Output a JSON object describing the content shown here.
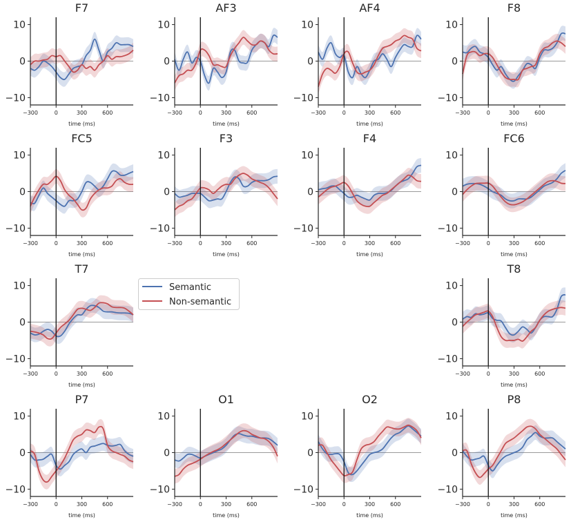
{
  "chart_data": {
    "type": "line",
    "layout": "4x4 grid of channel panels",
    "xlabel": "time (ms)",
    "xlim": [
      -300,
      900
    ],
    "ylim": [
      -12,
      12
    ],
    "xticks": [
      -300,
      0,
      300,
      600
    ],
    "xtick_labels": [
      "−300",
      "0",
      "300",
      "600"
    ],
    "yticks": [
      10,
      0,
      -10
    ],
    "ytick_labels": [
      "10",
      "0",
      "−10"
    ],
    "grid": false,
    "reference_lines": {
      "x": 0,
      "y": 0
    },
    "legend": {
      "placement": "row-3 column-2 slot",
      "entries": [
        "Semantic",
        "Non-semantic"
      ]
    },
    "colors": {
      "Semantic": "#4c72b0",
      "Non-semantic": "#c44e52"
    },
    "ci_halfwidth": 2,
    "x": [
      -300,
      -250,
      -200,
      -150,
      -100,
      -50,
      0,
      50,
      100,
      150,
      200,
      250,
      300,
      350,
      400,
      450,
      500,
      550,
      600,
      650,
      700,
      750,
      800,
      850,
      900
    ],
    "panels": [
      {
        "title": "F7",
        "row": 0,
        "col": 0,
        "series": [
          {
            "name": "Semantic",
            "values": [
              -2,
              -2.5,
              -1.5,
              0,
              -0.5,
              -1.5,
              -3,
              -4.5,
              -5,
              -3.5,
              -2,
              -1.5,
              -1,
              1.5,
              3,
              6,
              3,
              0,
              2.5,
              3.5,
              5,
              4.5,
              4.5,
              4.5,
              4
            ]
          },
          {
            "name": "Non-semantic",
            "values": [
              -1,
              0,
              0,
              0.3,
              0.5,
              1.5,
              1.2,
              1.5,
              0,
              -1.5,
              -3,
              -2.5,
              -1,
              -2,
              -1.5,
              -2.5,
              -1,
              0,
              1.5,
              0.5,
              1.2,
              1.2,
              1.5,
              2,
              3
            ]
          }
        ]
      },
      {
        "title": "AF3",
        "row": 0,
        "col": 1,
        "series": [
          {
            "name": "Semantic",
            "values": [
              0.5,
              -2.5,
              0.5,
              2.5,
              -0.5,
              1,
              0,
              -4,
              -6,
              -2,
              -3,
              -4.5,
              -3,
              2.5,
              3,
              0,
              -0.5,
              -0.3,
              3,
              4.5,
              5.5,
              5,
              4,
              7,
              6.5
            ]
          },
          {
            "name": "Non-semantic",
            "values": [
              -6,
              -4,
              -3.5,
              -2.5,
              -2.5,
              -0.5,
              3,
              3,
              1.5,
              -1,
              -1,
              -1.5,
              -1.5,
              1.5,
              3.5,
              5,
              6.5,
              5.5,
              4.5,
              4.5,
              5.5,
              5,
              3,
              2,
              2
            ]
          }
        ]
      },
      {
        "title": "AF4",
        "row": 0,
        "col": 2,
        "series": [
          {
            "name": "Semantic",
            "values": [
              2.5,
              0.5,
              3.5,
              5,
              2,
              1,
              1.5,
              -3,
              -4.5,
              -1.5,
              -3.5,
              -4.5,
              -2.5,
              0,
              0.5,
              2,
              0.5,
              -1.5,
              1,
              3,
              4.5,
              4,
              4,
              7,
              6
            ]
          },
          {
            "name": "Non-semantic",
            "values": [
              -7,
              -3.5,
              -2,
              -2.5,
              -3.3,
              -1.5,
              2,
              2.5,
              -0.5,
              -3,
              -3.5,
              -3,
              -2.5,
              -1,
              1.5,
              3.5,
              4,
              4.5,
              5.5,
              6,
              7,
              6.5,
              6,
              3.5,
              2.8
            ]
          }
        ]
      },
      {
        "title": "F8",
        "row": 0,
        "col": 3,
        "series": [
          {
            "name": "Semantic",
            "values": [
              2.5,
              2.3,
              3.5,
              4,
              2.5,
              2,
              1,
              -1,
              -2.5,
              -1.5,
              -3.5,
              -5,
              -5.5,
              -4,
              -2.5,
              -0.7,
              -1,
              -2,
              1,
              3,
              3,
              3.5,
              5,
              7.5,
              7.5
            ]
          },
          {
            "name": "Non-semantic",
            "values": [
              -3.5,
              1.5,
              2.5,
              2.5,
              1.5,
              2,
              2,
              1,
              -1,
              -3,
              -4.5,
              -5,
              -5,
              -5,
              -2.5,
              -2,
              -1.5,
              -1,
              2,
              3.5,
              4,
              5,
              5.5,
              5,
              4
            ]
          }
        ]
      },
      {
        "title": "FC5",
        "row": 1,
        "col": 0,
        "series": [
          {
            "name": "Semantic",
            "values": [
              -3,
              -3.2,
              -1,
              1,
              -0.5,
              -1.5,
              -2.5,
              -3.5,
              -4,
              -2.5,
              -2.5,
              -2,
              0,
              2.5,
              2.5,
              1.5,
              0.5,
              1.5,
              3.5,
              5.5,
              5.5,
              4.5,
              4.5,
              5,
              5.5
            ]
          },
          {
            "name": "Non-semantic",
            "values": [
              -4,
              -1.5,
              0.5,
              2,
              2,
              3,
              4.2,
              3,
              0.5,
              -1,
              -2,
              -3.5,
              -5,
              -4.5,
              -2,
              -0.5,
              0.5,
              1,
              1,
              1.5,
              3,
              3.5,
              2.5,
              2,
              2
            ]
          }
        ]
      },
      {
        "title": "F3",
        "row": 1,
        "col": 1,
        "series": [
          {
            "name": "Semantic",
            "values": [
              -0.5,
              -1.5,
              -1.3,
              -1,
              -0.5,
              -0.5,
              -0.5,
              -1.5,
              -2.5,
              -2.3,
              -2,
              -2,
              0,
              2.5,
              4,
              3.5,
              1.5,
              1.5,
              2.5,
              3,
              3,
              3,
              3.3,
              4,
              4.2
            ]
          },
          {
            "name": "Non-semantic",
            "values": [
              -5,
              -4,
              -3.5,
              -2.5,
              -2,
              -0.5,
              1,
              1,
              0.5,
              -0.5,
              0.5,
              1.5,
              2,
              2,
              3.5,
              4.5,
              5,
              4.5,
              3.5,
              3,
              2.5,
              2,
              1,
              -0.5,
              -2
            ]
          }
        ]
      },
      {
        "title": "F4",
        "row": 1,
        "col": 2,
        "series": [
          {
            "name": "Semantic",
            "values": [
              0.5,
              0.8,
              1,
              1.5,
              1.5,
              0.5,
              -0.5,
              -1.5,
              -1.5,
              -1,
              -1.5,
              -2,
              -2.3,
              -1,
              -0.5,
              -0.5,
              -0.3,
              0.3,
              1.5,
              2.5,
              3,
              3.5,
              5,
              6.8,
              7.2
            ]
          },
          {
            "name": "Non-semantic",
            "values": [
              -1.5,
              -0.5,
              0.5,
              1.2,
              1.5,
              2,
              2.5,
              1.5,
              -0.5,
              -2.5,
              -3.5,
              -4,
              -4,
              -3,
              -2,
              -1,
              -0.5,
              0.5,
              1.5,
              2.5,
              3.5,
              4.5,
              4,
              3,
              2.8
            ]
          }
        ]
      },
      {
        "title": "FC6",
        "row": 1,
        "col": 3,
        "series": [
          {
            "name": "Semantic",
            "values": [
              1.5,
              2,
              2.2,
              2.2,
              2,
              1.5,
              0.8,
              0,
              -0.5,
              -1,
              -2,
              -2.5,
              -2.5,
              -2,
              -2,
              -2,
              -1.5,
              -0.5,
              0.5,
              1.5,
              2,
              2.5,
              3.5,
              5,
              5.8
            ]
          },
          {
            "name": "Non-semantic",
            "values": [
              -0.8,
              0.5,
              1.5,
              2.2,
              2.3,
              2.3,
              2.3,
              1.5,
              0,
              -1.5,
              -2.8,
              -3.5,
              -3.6,
              -3.3,
              -2.8,
              -2,
              -1,
              0,
              1,
              2,
              2.8,
              3,
              2.8,
              2.3,
              2.2
            ]
          }
        ]
      },
      {
        "title": "T7",
        "row": 2,
        "col": 0,
        "series": [
          {
            "name": "Semantic",
            "values": [
              -3,
              -3.5,
              -3.3,
              -2.5,
              -2,
              -2.5,
              -3.8,
              -3.8,
              -2.5,
              -0.5,
              1,
              2,
              2,
              3.5,
              4.5,
              4.5,
              4,
              3,
              2.8,
              2.8,
              2.6,
              2.5,
              2.5,
              2.4,
              2
            ]
          },
          {
            "name": "Non-semantic",
            "values": [
              -2.5,
              -2.7,
              -3,
              -3.5,
              -4.5,
              -4.5,
              -3,
              -1.5,
              -0.5,
              0.5,
              2,
              3.5,
              3.8,
              3.5,
              3.2,
              4,
              5.2,
              5.3,
              5,
              4.2,
              4,
              4,
              3.8,
              3,
              2
            ]
          }
        ]
      },
      {
        "title": "T8",
        "row": 2,
        "col": 3,
        "series": [
          {
            "name": "Semantic",
            "values": [
              0.8,
              1.5,
              1.3,
              2.3,
              2,
              2.2,
              2.5,
              1,
              0.5,
              0.3,
              -1.5,
              -3.2,
              -3.5,
              -2.5,
              -1.3,
              -2,
              -3,
              -1.5,
              0.5,
              1.5,
              1.5,
              1.5,
              3.5,
              7,
              7.5
            ]
          },
          {
            "name": "Non-semantic",
            "values": [
              -1.2,
              0,
              1,
              2,
              2.3,
              2.7,
              3,
              1.5,
              -1.5,
              -4,
              -5,
              -5,
              -5,
              -4.7,
              -5.2,
              -4,
              -2.5,
              -1.5,
              0.5,
              2,
              3,
              3.5,
              3.8,
              4,
              3.8
            ]
          }
        ]
      },
      {
        "title": "P7",
        "row": 3,
        "col": 0,
        "series": [
          {
            "name": "Semantic",
            "values": [
              -0.5,
              -2,
              -2,
              -1.8,
              -1,
              -0.5,
              -3.5,
              -4.5,
              -3.5,
              -2.5,
              -0.5,
              0.5,
              1,
              0,
              1.5,
              1.8,
              2.2,
              2.5,
              2,
              1.8,
              2,
              2.2,
              0.5,
              -0.5,
              -1
            ]
          },
          {
            "name": "Non-semantic",
            "values": [
              0.5,
              -0.5,
              -5,
              -7.5,
              -8,
              -6.5,
              -5,
              -3.5,
              -1.5,
              1,
              3.5,
              4.5,
              5,
              6.2,
              6,
              5.5,
              7,
              6.5,
              2,
              0.5,
              0,
              -0.5,
              -1,
              -2,
              -2.5
            ]
          }
        ]
      },
      {
        "title": "O1",
        "row": 3,
        "col": 1,
        "series": [
          {
            "name": "Semantic",
            "values": [
              -2,
              -2.3,
              -1.5,
              -0.5,
              -0.5,
              -1,
              -1.5,
              -1,
              -0.5,
              0,
              0.5,
              1,
              2,
              3.5,
              4.8,
              5.2,
              4.8,
              4.5,
              4.5,
              4.2,
              4,
              4,
              3.8,
              3,
              2
            ]
          },
          {
            "name": "Non-semantic",
            "values": [
              -6.5,
              -6,
              -4.5,
              -3.5,
              -3,
              -2.5,
              -1.8,
              -1,
              -0.3,
              0.3,
              0.8,
              1.5,
              2.5,
              3.5,
              4.5,
              5.5,
              6,
              5.8,
              5,
              4.5,
              4,
              3.8,
              3,
              1.5,
              -1
            ]
          }
        ]
      },
      {
        "title": "O2",
        "row": 3,
        "col": 2,
        "series": [
          {
            "name": "Semantic",
            "values": [
              3,
              1,
              -0.3,
              -0.5,
              -0.3,
              -0.5,
              -2.5,
              -5.5,
              -6,
              -5,
              -3.5,
              -2,
              -0.5,
              0,
              0.3,
              1,
              2.5,
              4,
              5,
              5.5,
              6.5,
              7.3,
              6.5,
              5.5,
              4.5
            ]
          },
          {
            "name": "Non-semantic",
            "values": [
              2,
              2,
              0,
              -2,
              -3.5,
              -5,
              -6.3,
              -6,
              -5.3,
              -2,
              1,
              2,
              2.3,
              3,
              4.5,
              5.8,
              7,
              6.8,
              6.5,
              6.5,
              7,
              7.5,
              7,
              6,
              4
            ]
          }
        ]
      },
      {
        "title": "P8",
        "row": 3,
        "col": 3,
        "series": [
          {
            "name": "Semantic",
            "values": [
              0.5,
              -1,
              -2,
              -1.8,
              -1.5,
              -1,
              -3.5,
              -5,
              -3.5,
              -2,
              -1,
              -0.5,
              0,
              0.5,
              1.5,
              3.5,
              4.5,
              5.5,
              4.5,
              4,
              4,
              4,
              3,
              2,
              1
            ]
          },
          {
            "name": "Non-semantic",
            "values": [
              0.5,
              0.5,
              -3,
              -5.5,
              -6.8,
              -5.8,
              -4.5,
              -3.5,
              -1.5,
              0.5,
              2.5,
              3.3,
              4,
              5,
              6,
              7,
              7.2,
              6.5,
              5,
              4,
              3,
              2,
              1,
              -0.5,
              -2
            ]
          }
        ]
      }
    ]
  }
}
